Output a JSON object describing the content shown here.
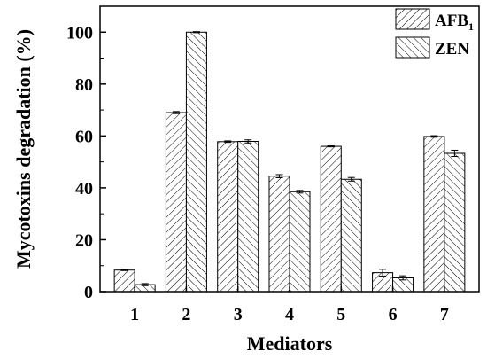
{
  "chart_data": {
    "type": "bar",
    "xlabel": "Mediators",
    "ylabel": "Mycotoxins degradation (%)",
    "categories": [
      "1",
      "2",
      "3",
      "4",
      "5",
      "6",
      "7"
    ],
    "ylim": [
      0,
      110
    ],
    "yticks": [
      0,
      20,
      40,
      60,
      80,
      100
    ],
    "series": [
      {
        "name": "AFB",
        "name_subscript": "1",
        "pattern": "forward-hatch",
        "values": [
          8.3,
          69.0,
          57.8,
          44.5,
          56.0,
          7.3,
          59.8
        ],
        "errors": [
          0.2,
          0.4,
          0.3,
          0.6,
          0.2,
          1.3,
          0.3
        ]
      },
      {
        "name": "ZEN",
        "pattern": "back-hatch",
        "values": [
          2.7,
          100.0,
          57.9,
          38.5,
          43.3,
          5.3,
          53.3
        ],
        "errors": [
          0.4,
          0.2,
          0.6,
          0.5,
          0.7,
          0.8,
          1.2
        ]
      }
    ],
    "legend_position": "top-right",
    "grid": false
  }
}
